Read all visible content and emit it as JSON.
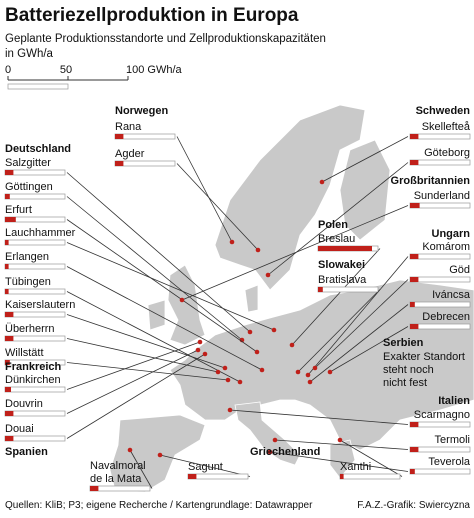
{
  "title": "Batteriezellproduktion in Europa",
  "subtitle": [
    "Geplante Produktionsstandorte und Zellproduktionskapazitäten",
    "in GWh/a"
  ],
  "scale": {
    "xlim": [
      0,
      100
    ],
    "xticks": [
      0,
      50,
      {
        "value": 100,
        "label": "100 GWh/a"
      }
    ]
  },
  "countries": [
    {
      "name": "Norwegen",
      "sites": [
        {
          "name": "Rana",
          "value": 7
        },
        {
          "name": "Agder",
          "value": 7
        }
      ]
    },
    {
      "name": "Schweden",
      "sites": [
        {
          "name": "Skellefteå",
          "value": 7
        },
        {
          "name": "Göteborg",
          "value": 7
        }
      ]
    },
    {
      "name": "Deutschland",
      "sites": [
        {
          "name": "Salzgitter",
          "value": 7
        },
        {
          "name": "Göttingen",
          "value": 4
        },
        {
          "name": "Erfurt",
          "value": 9
        },
        {
          "name": "Lauchhammer",
          "value": 3
        },
        {
          "name": "Erlangen",
          "value": 3
        },
        {
          "name": "Tübingen",
          "value": 3
        },
        {
          "name": "Kaiserslautern",
          "value": 7
        },
        {
          "name": "Überherrn",
          "value": 7
        },
        {
          "name": "Willstätt",
          "value": 4
        }
      ]
    },
    {
      "name": "Großbritannien",
      "sites": [
        {
          "name": "Sunderland",
          "value": 8
        }
      ]
    },
    {
      "name": "Polen",
      "sites": [
        {
          "name": "Breslau",
          "value": 45
        }
      ]
    },
    {
      "name": "Slowakei",
      "sites": [
        {
          "name": "Bratislava",
          "value": 4
        }
      ]
    },
    {
      "name": "Ungarn",
      "sites": [
        {
          "name": "Komárom",
          "value": 7
        },
        {
          "name": "Göd",
          "value": 7
        },
        {
          "name": "Iváncsa",
          "value": 4
        },
        {
          "name": "Debrecen",
          "value": 7
        }
      ]
    },
    {
      "name": "Frankreich",
      "sites": [
        {
          "name": "Dünkirchen",
          "value": 5
        },
        {
          "name": "Douvrin",
          "value": 7
        },
        {
          "name": "Douai",
          "value": 7
        }
      ]
    },
    {
      "name": "Serbien",
      "note": [
        "Exakter Standort",
        "steht noch",
        "nicht fest"
      ]
    },
    {
      "name": "Italien",
      "sites": [
        {
          "name": "Scarmagno",
          "value": 7
        },
        {
          "name": "Termoli",
          "value": 7
        },
        {
          "name": "Teverola",
          "value": 4
        }
      ]
    },
    {
      "name": "Spanien",
      "sites": [
        {
          "name": "Navalmoral de la Mata",
          "value": 7
        },
        {
          "name": "Sagunt",
          "value": 7
        }
      ]
    },
    {
      "name": "Griechenland",
      "sites": [
        {
          "name": "Xanthi",
          "value": 3
        }
      ]
    }
  ],
  "source": "Quellen: KliB; P3; eigene Recherche / Kartengrundlage: Datawrapper",
  "credit": "F.A.Z.-Grafik: Swiercyzna"
}
